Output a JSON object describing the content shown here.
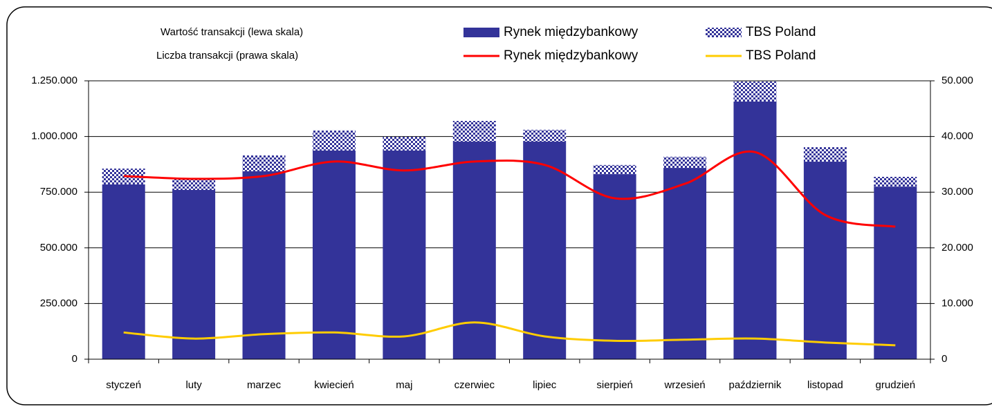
{
  "chart_data": {
    "type": "bar-line",
    "legend_titles": [
      "Wartość transakcji (lewa skala)",
      "Liczba transakcji (prawa skala)"
    ],
    "categories": [
      "styczeń",
      "luty",
      "marzec",
      "kwiecień",
      "maj",
      "czerwiec",
      "lipiec",
      "sierpień",
      "wrzesień",
      "październik",
      "listopad",
      "grudzień"
    ],
    "series": [
      {
        "name": "Rynek międzybankowy",
        "type": "bar",
        "color": "#333399",
        "values": [
          785000,
          760000,
          844000,
          937000,
          937000,
          977000,
          977000,
          831000,
          859000,
          1157000,
          887000,
          775000
        ]
      },
      {
        "name": "TBS Poland",
        "type": "bar",
        "color": "#333399",
        "pattern": "checker",
        "values": [
          71000,
          53000,
          71000,
          90000,
          62000,
          93000,
          53000,
          41000,
          50000,
          90000,
          65000,
          44000
        ]
      },
      {
        "name": "Rynek międzybankowy",
        "type": "line",
        "axis": "y2",
        "color": "#ff0000",
        "values": [
          32900,
          32400,
          32900,
          35500,
          33900,
          35500,
          34900,
          28900,
          31500,
          37200,
          25900,
          23800
        ]
      },
      {
        "name": "TBS Poland",
        "type": "line",
        "axis": "y2",
        "color": "#ffcc00",
        "values": [
          4800,
          3700,
          4500,
          4800,
          4100,
          6600,
          4100,
          3300,
          3500,
          3700,
          3000,
          2500
        ]
      }
    ],
    "stacked": true,
    "ylim": [
      0,
      1250000
    ],
    "yticks": [
      0,
      {
        "value": 250000,
        "label": "250.000"
      },
      {
        "value": 500000,
        "label": "500.000"
      },
      {
        "value": 750000,
        "label": "750.000"
      },
      {
        "value": 1000000,
        "label": "1.000.000"
      },
      {
        "value": 1250000,
        "label": "1.250.000"
      }
    ],
    "y2lim": [
      0,
      50000
    ],
    "y2ticks": [
      0,
      {
        "value": 10000,
        "label": "10.000"
      },
      {
        "value": 20000,
        "label": "20.000"
      },
      {
        "value": 30000,
        "label": "30.000"
      },
      {
        "value": 40000,
        "label": "40.000"
      },
      {
        "value": 50000,
        "label": "50.000"
      }
    ],
    "grid": true
  }
}
